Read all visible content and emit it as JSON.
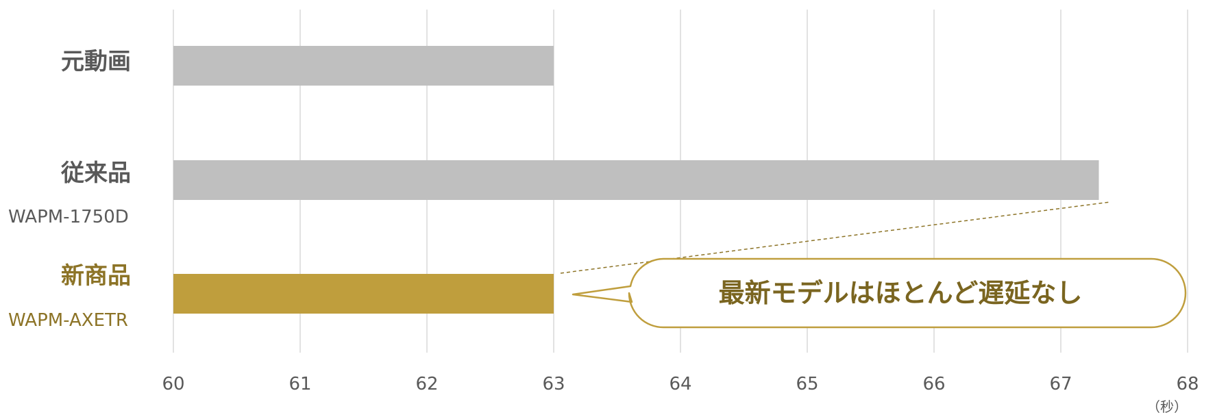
{
  "chart_data": {
    "type": "bar",
    "orientation": "horizontal",
    "categories": [
      {
        "name": "元動画",
        "model": "",
        "value": 63,
        "color": "#bfbfbf",
        "label_color": "#595959"
      },
      {
        "name": "従来品",
        "model": "WAPM-1750D",
        "value": 67.3,
        "color": "#bfbfbf",
        "label_color": "#595959"
      },
      {
        "name": "新商品",
        "model": "WAPM-AXETR",
        "value": 63,
        "color": "#bf9e3d",
        "label_color": "#8c7326"
      }
    ],
    "xlim": [
      60,
      68
    ],
    "xticks": [
      "60",
      "61",
      "62",
      "63",
      "64",
      "65",
      "66",
      "67",
      "68"
    ],
    "x_unit": "（秒）",
    "grid": "vertical",
    "callout": {
      "text": "最新モデルはほとんど遅延なし",
      "border_color": "#bf9e3d",
      "text_color": "#7a6520"
    }
  }
}
